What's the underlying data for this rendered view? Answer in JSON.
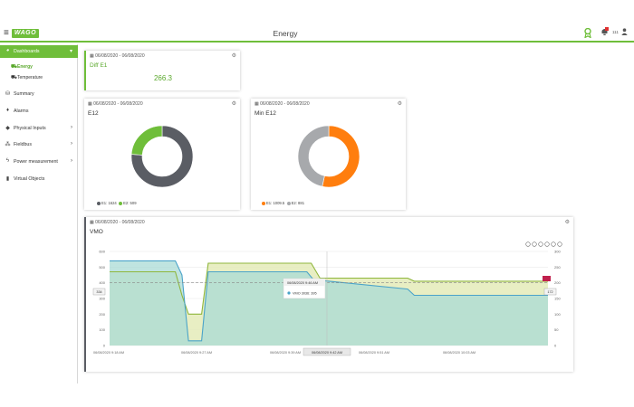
{
  "header": {
    "title": "Energy",
    "logo": "WAGO",
    "user_count": "111"
  },
  "icons": {
    "menu": "hamburger-icon",
    "ribbon": "ribbon-icon",
    "bell": "bell-icon",
    "user": "user-icon"
  },
  "colors": {
    "accent": "#6fbe3a",
    "grey": "#5a5d64",
    "orange": "#ff7e0e",
    "light_grey": "#a7a9ac",
    "teal": "#4aa3c9"
  },
  "sidebar": {
    "items": [
      {
        "label": "Dashboards",
        "icon": "dashboard-icon",
        "chevron": "▾"
      },
      {
        "label": "Summary",
        "icon": "summary-icon",
        "chevron": ""
      },
      {
        "label": "Alarms",
        "icon": "alarm-icon",
        "chevron": ""
      },
      {
        "label": "Physical Inputs",
        "icon": "tag-icon",
        "chevron": "›"
      },
      {
        "label": "Fieldbus",
        "icon": "network-icon",
        "chevron": "›"
      },
      {
        "label": "Power measurement",
        "icon": "bolt-icon",
        "chevron": "›"
      },
      {
        "label": "Virtual Objects",
        "icon": "file-icon",
        "chevron": ""
      }
    ],
    "sub_items": [
      {
        "label": "Energy",
        "icon": "car-icon"
      },
      {
        "label": "Temperature",
        "icon": "car-icon"
      }
    ]
  },
  "cards": {
    "diff": {
      "date": "06/08/2020 - 06/08/2020",
      "title": "Diff E1",
      "value": "266.3"
    },
    "e12": {
      "date": "06/08/2020 - 06/08/2020",
      "title": "E12",
      "legend": [
        "E1: 1624",
        "E2: 509"
      ]
    },
    "min_e12": {
      "date": "06/08/2020 - 06/08/2020",
      "title": "Min E12",
      "legend": [
        "E1: 1009.5",
        "E2: 881"
      ]
    },
    "vmo": {
      "date": "06/08/2020 - 06/08/2020",
      "title": "VMO",
      "tooltip_title": "06/08/2020 9:46 AM",
      "tooltip_text": "VMO 3036: 395",
      "crosshair_label": "06/08/2020 9:42 AM",
      "left_marker": "334",
      "right_marker": "172",
      "toolbar": [
        "download-icon",
        "zoom-in-icon",
        "zoom-out-icon",
        "magnify-icon",
        "pan-icon",
        "home-icon"
      ]
    }
  },
  "chart_data": [
    {
      "type": "pie",
      "title": "E12",
      "labels": [
        "E1",
        "E2"
      ],
      "values": [
        1624,
        509
      ],
      "colors": [
        "#5a5d64",
        "#6fbe3a"
      ]
    },
    {
      "type": "pie",
      "title": "Min E12",
      "labels": [
        "E1",
        "E2"
      ],
      "values": [
        1009.5,
        881
      ],
      "colors": [
        "#ff7e0e",
        "#a7a9ac"
      ]
    },
    {
      "type": "area",
      "title": "VMO",
      "x_ticks": [
        "06/08/2020 9:18 AM",
        "06/08/2020 9:27 AM",
        "06/08/2020 9:39 AM",
        "06/08/2020 9:42 AM",
        "06/08/2020 9:51 AM",
        "06/08/2020 10:03 AM"
      ],
      "y_left_ticks": [
        "0",
        "100",
        "200",
        "300",
        "400",
        "500",
        "600"
      ],
      "y_right_ticks": [
        "0",
        "50",
        "100",
        "150",
        "200",
        "250",
        "300"
      ],
      "ylim_left": [
        0,
        600
      ],
      "ylim_right": [
        0,
        300
      ],
      "series": [
        {
          "color": "#4aa3c9",
          "axis": "left",
          "x": [
            0,
            0.15,
            0.165,
            0.18,
            0.21,
            0.225,
            0.45,
            0.465,
            0.68,
            0.695,
            1
          ],
          "y": [
            540,
            540,
            450,
            30,
            30,
            470,
            470,
            420,
            360,
            320,
            320
          ]
        },
        {
          "color": "#8fb63c",
          "axis": "left",
          "x": [
            0,
            0.15,
            0.165,
            0.18,
            0.21,
            0.225,
            0.46,
            0.48,
            0.68,
            0.695,
            1
          ],
          "y": [
            470,
            470,
            320,
            200,
            200,
            525,
            525,
            430,
            430,
            410,
            410
          ]
        }
      ],
      "dashed_reference": 400
    }
  ]
}
